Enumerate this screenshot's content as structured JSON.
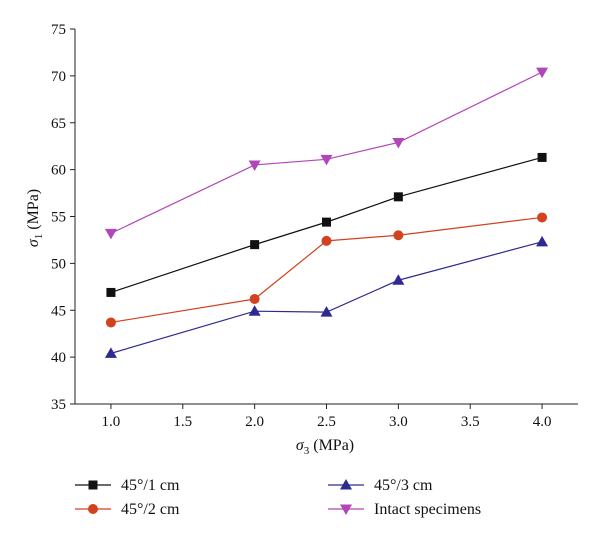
{
  "chart_data": {
    "type": "line",
    "xlabel_symbol": "σ",
    "xlabel_sub": "3",
    "xlabel_unit": " (MPa)",
    "ylabel_symbol": "σ",
    "ylabel_sub": "1",
    "ylabel_unit": " (MPa)",
    "xlim": [
      0.75,
      4.25
    ],
    "ylim": [
      35,
      75
    ],
    "xticks": [
      "1.0",
      "1.5",
      "2.0",
      "2.5",
      "3.0",
      "3.5",
      "4.0"
    ],
    "yticks": [
      "35",
      "40",
      "45",
      "50",
      "55",
      "60",
      "65",
      "70",
      "75"
    ],
    "x": [
      1.0,
      2.0,
      2.5,
      3.0,
      4.0
    ],
    "grid": false,
    "legend_position": "below",
    "series": [
      {
        "name": "45°/1 cm",
        "values": [
          46.9,
          52.0,
          54.4,
          57.1,
          61.3
        ],
        "color": "#111111",
        "marker": "square"
      },
      {
        "name": "45°/2 cm",
        "values": [
          43.7,
          46.2,
          52.4,
          53.0,
          54.9
        ],
        "color": "#d2421e",
        "marker": "circle"
      },
      {
        "name": "45°/3 cm",
        "values": [
          40.4,
          44.9,
          44.8,
          48.2,
          52.3
        ],
        "color": "#2e2a8f",
        "marker": "triangle-up"
      },
      {
        "name": "Intact specimens",
        "values": [
          53.2,
          60.5,
          61.1,
          62.9,
          70.4
        ],
        "color": "#b146b8",
        "marker": "triangle-down"
      }
    ]
  }
}
